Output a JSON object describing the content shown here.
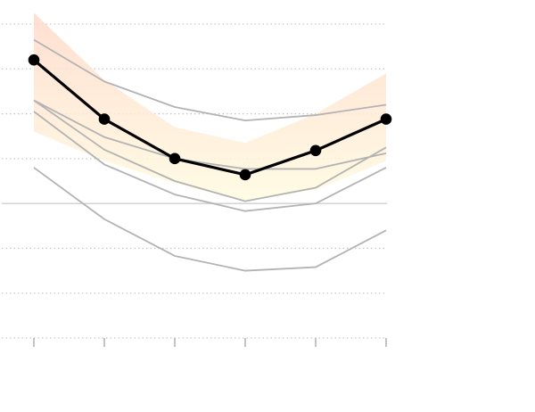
{
  "chart_data": {
    "type": "line",
    "title": "",
    "xlabel": "",
    "ylabel": "",
    "x": [
      1,
      2,
      3,
      4,
      5,
      6
    ],
    "ylim": [
      -3,
      4
    ],
    "grid": true,
    "grid_style": "dotted",
    "zero_line": true,
    "legend": "none",
    "band": {
      "upper": [
        4.25,
        2.75,
        1.7,
        1.35,
        2.0,
        2.9
      ],
      "lower": [
        1.6,
        0.95,
        0.45,
        0.05,
        0.3,
        0.95
      ],
      "colors": [
        "#ffd9c9",
        "#fffbe0"
      ]
    },
    "main_series": {
      "values": [
        3.2,
        1.88,
        1.0,
        0.64,
        1.18,
        1.88
      ],
      "color": "#000000"
    },
    "series": [
      {
        "values": [
          3.65,
          2.72,
          2.15,
          1.85,
          1.97,
          2.2
        ],
        "color": "#b3b3b3"
      },
      {
        "values": [
          2.3,
          1.48,
          1.0,
          0.77,
          0.77,
          1.12
        ],
        "color": "#b3b3b3"
      },
      {
        "values": [
          2.3,
          1.2,
          0.5,
          0.05,
          0.35,
          1.25
        ],
        "color": "#b3b3b3"
      },
      {
        "values": [
          2.05,
          0.87,
          0.2,
          -0.17,
          0.0,
          0.8
        ],
        "color": "#b3b3b3"
      },
      {
        "values": [
          0.8,
          -0.35,
          -1.17,
          -1.5,
          -1.42,
          -0.6
        ],
        "color": "#b3b3b3"
      }
    ]
  }
}
